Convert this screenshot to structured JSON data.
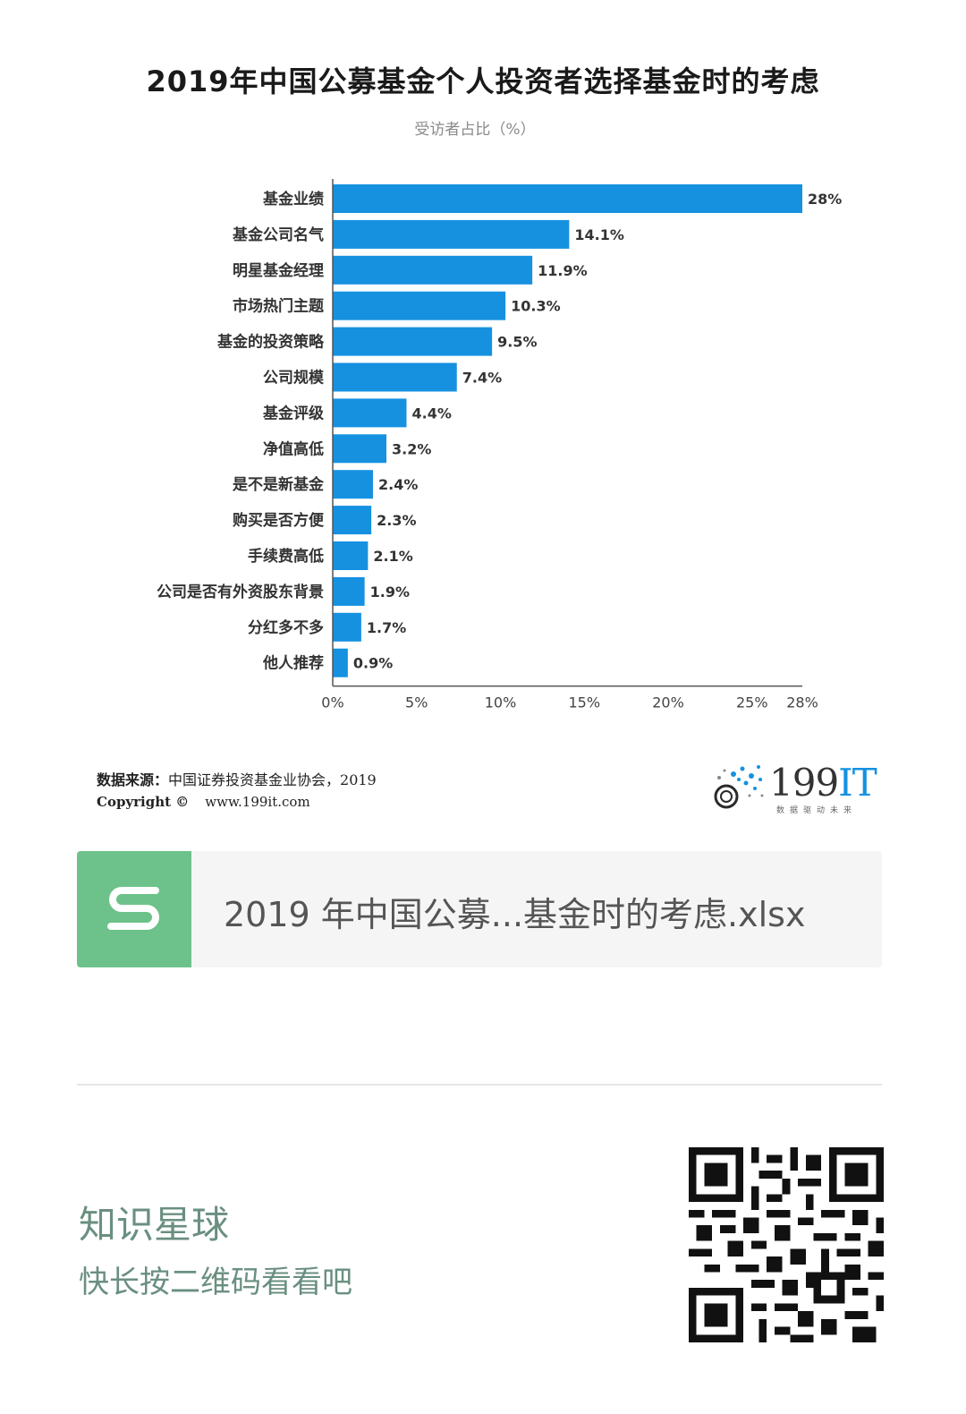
{
  "header": {
    "title": "2019年中国公募基金个人投资者选择基金时的考虑",
    "subtitle": "受访者占比（%）"
  },
  "chart_data": {
    "type": "bar",
    "orientation": "horizontal",
    "title": "2019年中国公募基金个人投资者选择基金时的考虑",
    "subtitle": "受访者占比（%）",
    "categories": [
      "基金业绩",
      "基金公司名气",
      "明星基金经理",
      "市场热门主题",
      "基金的投资策略",
      "公司规模",
      "基金评级",
      "净值高低",
      "是不是新基金",
      "购买是否方便",
      "手续费高低",
      "公司是否有外资股东背景",
      "分红多不多",
      "他人推荐"
    ],
    "values": [
      28,
      14.1,
      11.9,
      10.3,
      9.5,
      7.4,
      4.4,
      3.2,
      2.4,
      2.3,
      2.1,
      1.9,
      1.7,
      0.9
    ],
    "value_labels": [
      "28%",
      "14.1%",
      "11.9%",
      "10.3%",
      "9.5%",
      "7.4%",
      "4.4%",
      "3.2%",
      "2.4%",
      "2.3%",
      "2.1%",
      "1.9%",
      "1.7%",
      "0.9%"
    ],
    "xlim": [
      0,
      28
    ],
    "xticks": [
      0,
      5,
      10,
      15,
      20,
      25,
      28
    ],
    "xtick_labels": [
      "0%",
      "5%",
      "10%",
      "15%",
      "20%",
      "25%",
      "28%"
    ],
    "bar_color": "#1591e0",
    "grid": false,
    "legend": "none"
  },
  "footer": {
    "source_label": "数据来源：",
    "source_text": "中国证券投资基金业协会，2019",
    "copyright_label": "Copyright ©",
    "website": "www.199it.com",
    "brand_num": "199",
    "brand_it": "IT",
    "brand_tagline": "数据驱动未来"
  },
  "attachment": {
    "icon": "spreadsheet-s-icon",
    "icon_color": "#6cc28a",
    "file_name": "2019 年中国公募...基金时的考虑.xlsx"
  },
  "promo": {
    "title": "知识星球",
    "subtitle": "快长按二维码看看吧",
    "qr_icon": "qr-code-icon"
  }
}
